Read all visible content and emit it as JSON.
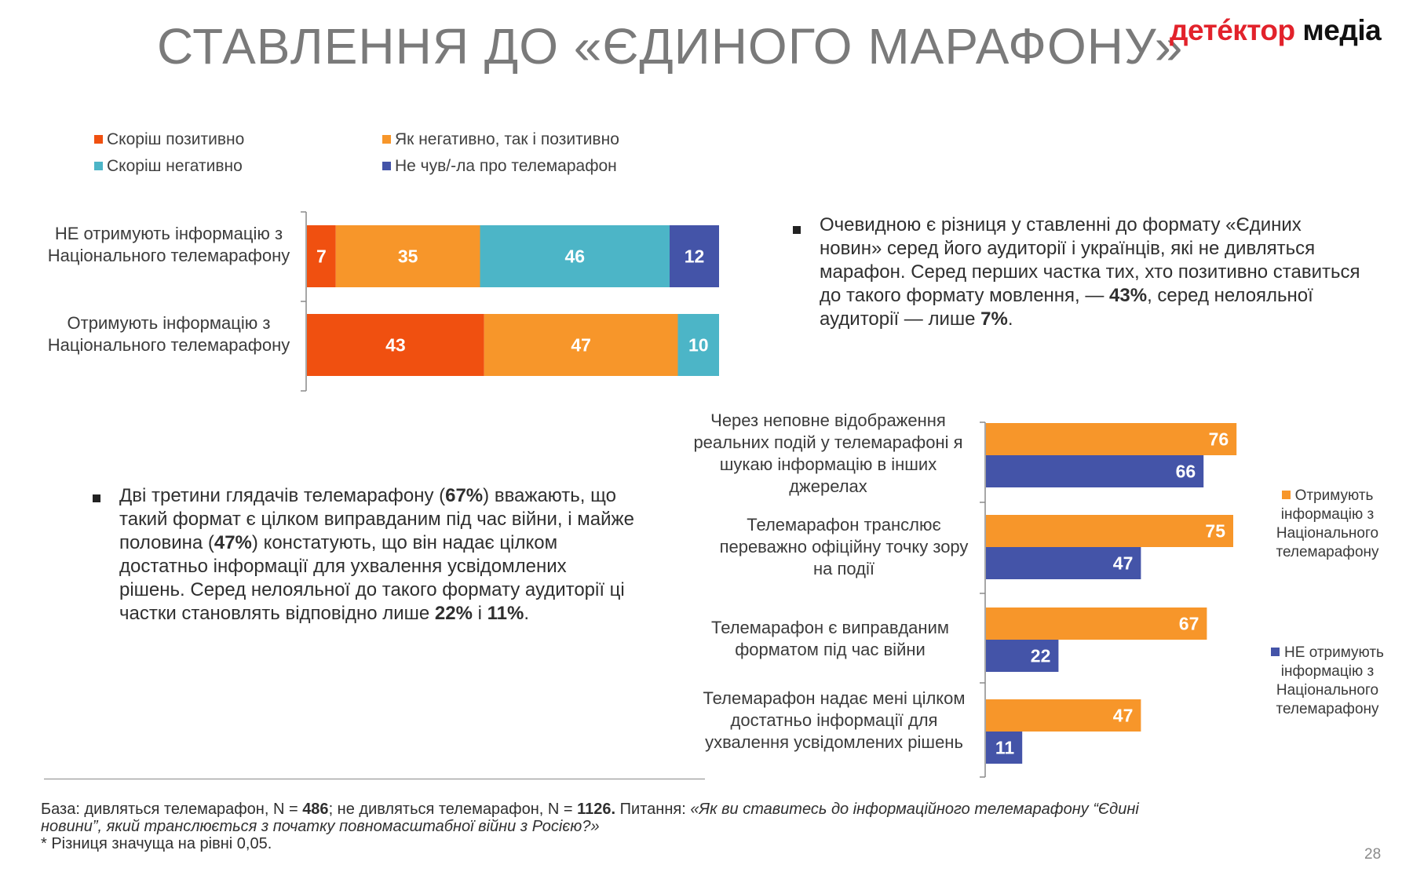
{
  "page": {
    "title": "СТАВЛЕННЯ ДО «ЄДИНОГО МАРАФОНУ»",
    "logo_part1": "детéктор",
    "logo_part2": "медіа",
    "page_number": "28"
  },
  "colors": {
    "positive": "#f05010",
    "mixed": "#f7962a",
    "negative": "#4cb5c7",
    "not_heard": "#4454a8",
    "receive": "#f7962a",
    "not_receive": "#4454a8"
  },
  "bullet1": {
    "parts": [
      "Очевидною є різниця у ставленні до формату «Єдиних новин» серед його аудиторії і українців, які не дивляться марафон. Серед перших частка тих, хто позитивно ставиться до такого формату мовлення, — ",
      "43%",
      ", серед нелояльної аудиторії — лише ",
      "7%",
      "."
    ]
  },
  "bullet2": {
    "parts": [
      "Дві третини глядачів телемарафону (",
      "67%",
      ") вважають, що такий формат є цілком виправданим під час війни, і майже половина (",
      "47%",
      ") констатують, що він надає  цілком достатньо інформації для ухвалення усвідомлених рішень. Серед нелояльної до такого формату аудиторії ці частки становлять відповідно лише ",
      "22%",
      " і ",
      "11%",
      "."
    ]
  },
  "footnote": {
    "base_prefix": "База: дивляться телемарафон, N = ",
    "n1": "486",
    "base_mid": "; не дивляться телемарафон, N = ",
    "n2": "1126.",
    "question_prefix": " Питання: ",
    "question": "«Як ви ставитесь до інформаційного телемарафону “Єдині новини”, який транслюється з початку повномасштабної війни з Росією?»",
    "significance": "* Різниця значуща на рівні 0,05."
  },
  "chart_data": [
    {
      "type": "bar",
      "orientation": "horizontal-stacked",
      "categories": [
        "НЕ отримують інформацію з Національного телемарафону",
        "Отримують інформацію  з Національного телемарафону"
      ],
      "series": [
        {
          "name": "Скоріш позитивно",
          "values": [
            7,
            43
          ]
        },
        {
          "name": "Як негативно, так і позитивно",
          "values": [
            35,
            47
          ]
        },
        {
          "name": "Скоріш негативно",
          "values": [
            46,
            10
          ]
        },
        {
          "name": "Не чув/-ла про телемарафон",
          "values": [
            12,
            0
          ]
        }
      ],
      "legend": "top-left",
      "xlim": [
        0,
        100
      ]
    },
    {
      "type": "bar",
      "orientation": "horizontal-grouped",
      "categories": [
        "Через неповне відображення реальних подій у телемарафоні я шукаю інформацію в інших джерелах",
        "Телемарафон транслює переважно офіційну точку зору на події",
        "Телемарафон є виправданим форматом під час війни",
        "Телемарафон надає мені цілком достатньо інформації для ухвалення усвідомлених рішень"
      ],
      "series": [
        {
          "name": "Отримують інформацію з Національного телемарафону",
          "values": [
            76,
            75,
            67,
            47
          ]
        },
        {
          "name": "НЕ отримують інформацію  з Національного телемарафону",
          "values": [
            66,
            47,
            22,
            11
          ]
        }
      ],
      "legend": "right",
      "xlim": [
        0,
        100
      ]
    }
  ]
}
